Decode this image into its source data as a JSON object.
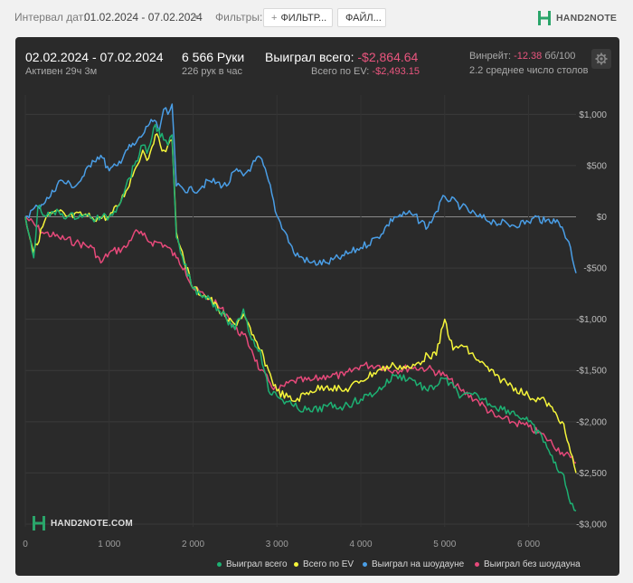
{
  "topbar": {
    "interval_label": "Интервал дат:",
    "date_range": "01.02.2024 - 07.02.2024",
    "filters_label": "Фильтры:",
    "filters_button": "ФИЛЬТР...",
    "file_button": "ФАЙЛ..."
  },
  "brand": {
    "logo_text": "HAND2NOTE",
    "watermark_text": "HAND2NOTE.COM"
  },
  "summary": {
    "period": "02.02.2024 - 07.02.2024",
    "active": "Активен 29ч 3м",
    "hands": "6 566 Руки",
    "hands_per_hour": "226 рук в час",
    "won_label": "Выиграл всего:",
    "won_value": "-$2,864.64",
    "ev_label": "Всего по EV:",
    "ev_value": "-$2,493.15",
    "winrate_label": "Винрейт:",
    "winrate_value": "-12.38",
    "winrate_unit": "бб/100",
    "avg_tables": "2.2 среднее число столов"
  },
  "colors": {
    "won": "#1db173",
    "ev": "#f5f53a",
    "showdown": "#4a9ee6",
    "no_showdown": "#e6497a",
    "negative": "#e9557e"
  },
  "chart_data": {
    "type": "line",
    "xlim": [
      0,
      6566
    ],
    "ylim": [
      -3000,
      1100
    ],
    "x_ticks": [
      0,
      1000,
      2000,
      3000,
      4000,
      5000,
      6000
    ],
    "x_tick_labels": [
      "0",
      "1 000",
      "2 000",
      "3 000",
      "4 000",
      "5 000",
      "6 000"
    ],
    "y_ticks": [
      1000,
      500,
      0,
      -500,
      -1000,
      -1500,
      -2000,
      -2500,
      -3000
    ],
    "y_tick_labels": [
      "$1,000",
      "$500",
      "$0",
      "-$500",
      "-$1,000",
      "-$1,500",
      "-$2,000",
      "-$2,500",
      "-$3,000"
    ],
    "series": [
      {
        "name": "Выиграл всего",
        "color": "#1db173",
        "x": [
          0,
          100,
          150,
          250,
          400,
          500,
          700,
          800,
          900,
          1000,
          1100,
          1200,
          1300,
          1400,
          1450,
          1550,
          1650,
          1700,
          1750,
          1800,
          1850,
          2000,
          2200,
          2300,
          2400,
          2500,
          2600,
          2700,
          2800,
          2850,
          2900,
          3000,
          3200,
          3400,
          3600,
          3800,
          4000,
          4200,
          4400,
          4600,
          4800,
          5000,
          5200,
          5400,
          5600,
          5800,
          6000,
          6200,
          6300,
          6400,
          6500,
          6566
        ],
        "y": [
          0,
          -400,
          100,
          0,
          50,
          0,
          20,
          -20,
          -10,
          0,
          100,
          300,
          500,
          700,
          620,
          900,
          750,
          700,
          800,
          -200,
          -350,
          -700,
          -800,
          -900,
          -1000,
          -1100,
          -900,
          -1200,
          -1300,
          -1500,
          -1700,
          -1750,
          -1850,
          -1900,
          -1850,
          -1850,
          -1780,
          -1700,
          -1550,
          -1580,
          -1700,
          -1580,
          -1750,
          -1750,
          -1850,
          -1900,
          -2000,
          -2200,
          -2400,
          -2500,
          -2800,
          -2870
        ]
      },
      {
        "name": "Всего по EV",
        "color": "#f5f53a",
        "x": [
          0,
          100,
          250,
          400,
          500,
          700,
          800,
          1000,
          1100,
          1200,
          1300,
          1400,
          1450,
          1550,
          1650,
          1700,
          1750,
          1800,
          1850,
          2000,
          2200,
          2300,
          2400,
          2500,
          2600,
          2700,
          2800,
          2900,
          3000,
          3200,
          3400,
          3600,
          3800,
          4000,
          4200,
          4400,
          4600,
          4800,
          4900,
          5000,
          5100,
          5200,
          5400,
          5600,
          5800,
          6000,
          6200,
          6300,
          6400,
          6500,
          6566
        ],
        "y": [
          0,
          -350,
          0,
          50,
          0,
          20,
          -10,
          0,
          100,
          250,
          450,
          650,
          550,
          800,
          650,
          700,
          750,
          -150,
          -300,
          -700,
          -800,
          -900,
          -1000,
          -1050,
          -950,
          -1150,
          -1300,
          -1500,
          -1700,
          -1800,
          -1700,
          -1650,
          -1700,
          -1600,
          -1500,
          -1450,
          -1480,
          -1350,
          -1350,
          -1000,
          -1300,
          -1250,
          -1400,
          -1550,
          -1650,
          -1750,
          -1800,
          -1900,
          -2000,
          -2300,
          -2500
        ]
      },
      {
        "name": "Выиграл на шоудауне",
        "color": "#4a9ee6",
        "x": [
          0,
          150,
          300,
          400,
          600,
          700,
          800,
          900,
          1000,
          1100,
          1200,
          1300,
          1400,
          1500,
          1600,
          1650,
          1700,
          1750,
          1800,
          2000,
          2200,
          2400,
          2500,
          2600,
          2700,
          2800,
          2900,
          3000,
          3100,
          3200,
          3400,
          3600,
          3800,
          4000,
          4200,
          4400,
          4600,
          4800,
          4900,
          5000,
          5200,
          5400,
          5600,
          5800,
          6000,
          6100,
          6200,
          6300,
          6400,
          6500,
          6566
        ],
        "y": [
          0,
          100,
          200,
          350,
          300,
          400,
          550,
          600,
          450,
          500,
          650,
          700,
          800,
          950,
          850,
          1050,
          1000,
          1100,
          300,
          250,
          350,
          300,
          450,
          400,
          500,
          580,
          350,
          10,
          -150,
          -350,
          -450,
          -450,
          -380,
          -300,
          -200,
          0,
          30,
          -100,
          50,
          200,
          100,
          0,
          -50,
          -80,
          -50,
          0,
          -50,
          -20,
          -100,
          -300,
          -550
        ]
      },
      {
        "name": "Выиграл без шоудауна",
        "color": "#e6497a",
        "x": [
          0,
          200,
          400,
          600,
          800,
          900,
          1000,
          1200,
          1300,
          1400,
          1500,
          1600,
          1700,
          1800,
          1900,
          2000,
          2200,
          2400,
          2500,
          2600,
          2700,
          2800,
          2900,
          3000,
          3200,
          3400,
          3600,
          3800,
          4000,
          4200,
          4400,
          4600,
          4800,
          5000,
          5200,
          5400,
          5600,
          5800,
          6000,
          6200,
          6400,
          6500,
          6566
        ],
        "y": [
          0,
          -150,
          -200,
          -250,
          -300,
          -450,
          -350,
          -300,
          -150,
          -180,
          -250,
          -250,
          -300,
          -400,
          -500,
          -700,
          -800,
          -950,
          -1100,
          -1150,
          -1300,
          -1500,
          -1600,
          -1700,
          -1600,
          -1600,
          -1550,
          -1550,
          -1450,
          -1450,
          -1500,
          -1470,
          -1480,
          -1550,
          -1700,
          -1800,
          -1950,
          -2000,
          -2050,
          -2150,
          -2300,
          -2350,
          -2400
        ]
      }
    ]
  }
}
